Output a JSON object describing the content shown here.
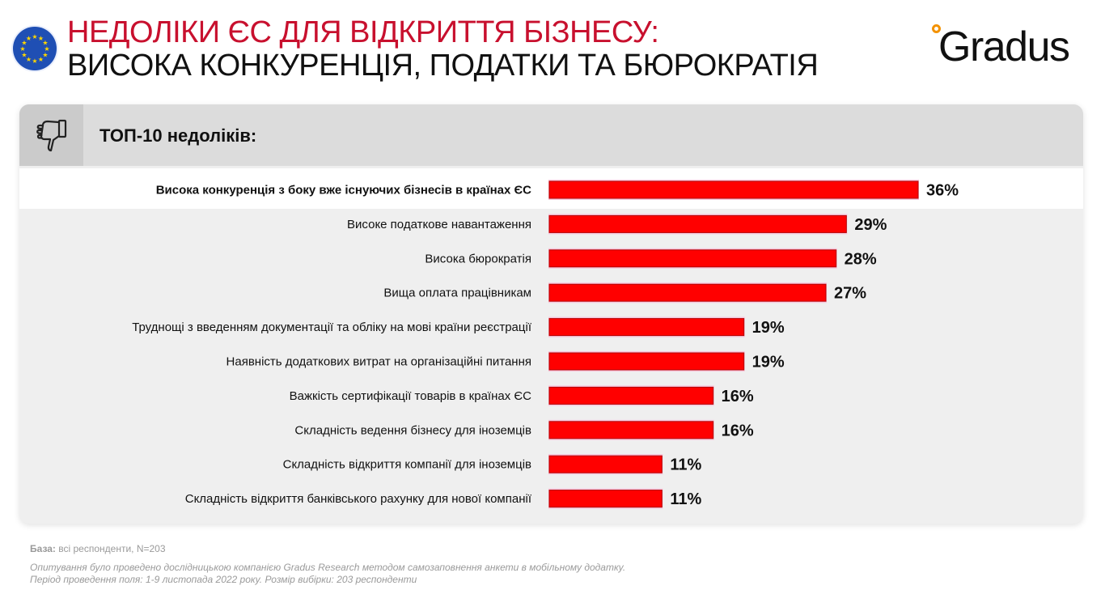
{
  "header": {
    "title_line1": "НЕДОЛІКИ ЄС ДЛЯ ВІДКРИТТЯ БІЗНЕСУ:",
    "title_line2": "ВИСОКА КОНКУРЕНЦІЯ, ПОДАТКИ ТА БЮРОКРАТІЯ",
    "logo_text": "Gradus",
    "flag_icon": "eu-flag-icon"
  },
  "panel": {
    "heading": "ТОП-10 недоліків:",
    "heading_icon": "thumbs-down-icon"
  },
  "colors": {
    "bar": "#ff0000",
    "title_accent": "#c8102e",
    "logo_dot": "#f39200"
  },
  "chart_data": {
    "type": "bar",
    "orientation": "horizontal",
    "categories": [
      "Висока конкуренція з боку вже існуючих бізнесів в країнах ЄС",
      "Високе податкове навантаження",
      "Висока бюрократія",
      "Вища оплата працівникам",
      "Труднощі з введенням документації та обліку на мові країни реєстрації",
      "Наявність додаткових витрат на організаційні питання",
      "Важкість сертифікації товарів в країнах ЄС",
      "Складність ведення бізнесу для іноземців",
      "Складність відкриття компанії для іноземців",
      "Складність відкриття банківського рахунку для нової компанії"
    ],
    "values": [
      36,
      29,
      28,
      27,
      19,
      19,
      16,
      16,
      11,
      11
    ],
    "value_labels": [
      "36%",
      "29%",
      "28%",
      "27%",
      "19%",
      "19%",
      "16%",
      "16%",
      "11%",
      "11%"
    ],
    "highlighted_index": 0,
    "xlim": [
      0,
      36
    ],
    "grid": false
  },
  "footer": {
    "base_label": "База:",
    "base_text": " всі респонденти, N=203",
    "note_line1": "Опитування було проведено дослідницькою компанією Gradus Research методом самозаповнення анкети в мобільному додатку.",
    "note_line2": "Період проведення поля: 1-9 листопада 2022 року. Розмір вибірки: 203 респонденти"
  }
}
